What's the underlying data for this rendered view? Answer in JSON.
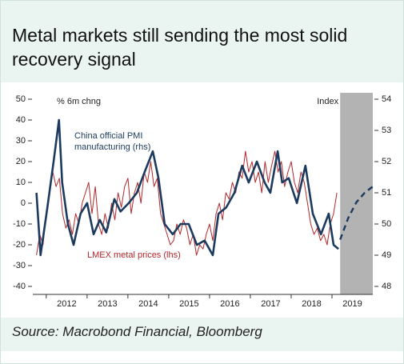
{
  "chart_data": {
    "type": "line",
    "title": "Metal markets still sending the most solid recovery signal",
    "source": "Source: Macrobond Financial, Bloomberg",
    "y_axis_label": "% 6m chng",
    "y2_axis_label": "Index",
    "xlim": [
      2011.67,
      2020.0
    ],
    "xticks": [
      2012,
      2013,
      2014,
      2015,
      2016,
      2017,
      2018,
      2019
    ],
    "ylim": [
      -40,
      50
    ],
    "yticks": [
      -40,
      -30,
      -20,
      -10,
      0,
      10,
      20,
      30,
      40,
      50
    ],
    "y2lim": [
      48,
      54
    ],
    "y2ticks": [
      48,
      49,
      50,
      51,
      52,
      53,
      54
    ],
    "shaded_xrange": [
      2019.2,
      2020.0
    ],
    "shade_color": "#b3b3b3",
    "series": [
      {
        "name": "China official PMI manufacturing (rhs)",
        "color": "#1b3a5e",
        "axis": "y2",
        "width": 2.6,
        "x": [
          2011.76,
          2011.86,
          2012.02,
          2012.18,
          2012.31,
          2012.39,
          2012.53,
          2012.67,
          2012.84,
          2013.0,
          2013.16,
          2013.31,
          2013.47,
          2013.67,
          2013.82,
          2014.02,
          2014.22,
          2014.41,
          2014.61,
          2014.75,
          2014.9,
          2015.1,
          2015.29,
          2015.49,
          2015.69,
          2015.88,
          2016.08,
          2016.22,
          2016.41,
          2016.61,
          2016.8,
          2016.96,
          2017.16,
          2017.35,
          2017.49,
          2017.67,
          2017.78,
          2017.94,
          2018.14,
          2018.35,
          2018.53,
          2018.73,
          2018.92,
          2019.04,
          2019.16
        ],
        "values": [
          51.0,
          49.0,
          50.47,
          52.0,
          53.33,
          51.33,
          50.0,
          49.33,
          50.33,
          50.67,
          49.67,
          50.13,
          49.73,
          50.8,
          50.4,
          50.67,
          51.0,
          51.67,
          52.33,
          51.47,
          50.0,
          49.67,
          50.0,
          50.0,
          49.33,
          49.47,
          49.0,
          50.33,
          50.53,
          51.0,
          51.87,
          51.33,
          52.0,
          51.33,
          51.0,
          52.33,
          51.33,
          51.47,
          50.67,
          51.87,
          50.33,
          49.67,
          50.33,
          49.33,
          49.2
        ]
      },
      {
        "color": "#1b3a5e",
        "axis": "y2",
        "dashed": true,
        "width": 2.4,
        "x": [
          2019.2,
          2019.4,
          2019.6,
          2019.8,
          2020.0
        ],
        "values": [
          49.5,
          50.2,
          50.7,
          51.0,
          51.2
        ]
      },
      {
        "name": "LMEX metal prices (lhs)",
        "color": "#b3262a",
        "axis": "y",
        "width": 1,
        "x": [
          2011.76,
          2011.84,
          2011.92,
          2012.0,
          2012.08,
          2012.16,
          2012.24,
          2012.32,
          2012.4,
          2012.48,
          2012.56,
          2012.64,
          2012.72,
          2012.8,
          2012.88,
          2012.96,
          2013.04,
          2013.12,
          2013.2,
          2013.28,
          2013.36,
          2013.44,
          2013.52,
          2013.6,
          2013.68,
          2013.76,
          2013.84,
          2013.92,
          2014.0,
          2014.08,
          2014.16,
          2014.24,
          2014.32,
          2014.4,
          2014.48,
          2014.56,
          2014.64,
          2014.72,
          2014.8,
          2014.88,
          2014.96,
          2015.04,
          2015.12,
          2015.2,
          2015.28,
          2015.36,
          2015.44,
          2015.52,
          2015.6,
          2015.68,
          2015.76,
          2015.84,
          2015.92,
          2016.0,
          2016.08,
          2016.16,
          2016.24,
          2016.32,
          2016.4,
          2016.48,
          2016.56,
          2016.64,
          2016.72,
          2016.8,
          2016.88,
          2016.96,
          2017.04,
          2017.12,
          2017.2,
          2017.28,
          2017.36,
          2017.44,
          2017.52,
          2017.6,
          2017.68,
          2017.76,
          2017.84,
          2017.92,
          2018.0,
          2018.08,
          2018.16,
          2018.24,
          2018.32,
          2018.4,
          2018.48,
          2018.56,
          2018.64,
          2018.72,
          2018.8,
          2018.88,
          2018.96,
          2019.04,
          2019.12
        ],
        "values": [
          -25,
          -15,
          -20,
          -5,
          5,
          15,
          8,
          12,
          -5,
          -12,
          -8,
          -15,
          -5,
          -10,
          0,
          5,
          10,
          -5,
          8,
          -10,
          -15,
          -5,
          -12,
          0,
          -8,
          5,
          -2,
          8,
          12,
          -5,
          5,
          10,
          0,
          15,
          10,
          20,
          8,
          12,
          -5,
          -10,
          -15,
          -20,
          -18,
          -10,
          -15,
          -8,
          -12,
          -20,
          -15,
          -25,
          -20,
          -22,
          -15,
          -10,
          -18,
          -5,
          0,
          -8,
          5,
          2,
          10,
          5,
          15,
          12,
          25,
          15,
          20,
          10,
          15,
          5,
          20,
          10,
          18,
          25,
          15,
          20,
          8,
          15,
          20,
          10,
          5,
          15,
          10,
          0,
          -10,
          -15,
          -12,
          -18,
          -15,
          -20,
          -10,
          -5,
          5
        ]
      }
    ]
  }
}
